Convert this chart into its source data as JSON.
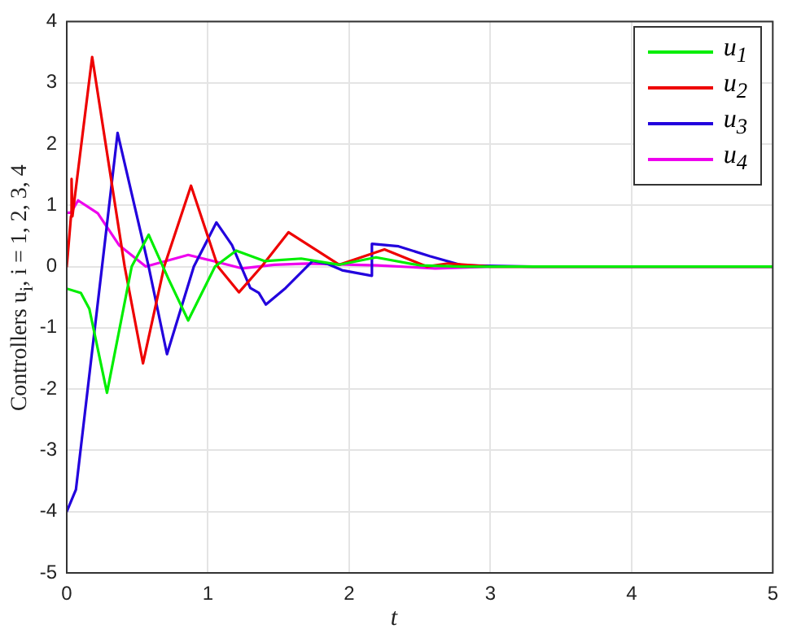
{
  "chart_data": {
    "type": "line",
    "xlabel": "t",
    "ylabel": "Controllers u$_{i}$, i = 1, 2, 3, 4",
    "xlim": [
      0,
      5
    ],
    "ylim": [
      -5,
      4
    ],
    "xticks": [
      0,
      1,
      2,
      3,
      4,
      5
    ],
    "yticks": [
      -5,
      -4,
      -3,
      -2,
      -1,
      0,
      1,
      2,
      3,
      4
    ],
    "grid": true,
    "legend": "top right",
    "marker": "none",
    "line_style": "solid",
    "series": [
      {
        "name": "u$_{1}$",
        "color": "#00ee00",
        "x": [
          0,
          0.1,
          0.16,
          0.285,
          0.46,
          0.58,
          0.72,
          0.86,
          1.05,
          1.2,
          1.4,
          1.66,
          1.93,
          2.19,
          2.5,
          2.8,
          3.2,
          5
        ],
        "values": [
          -0.36,
          -0.43,
          -0.69,
          -2.06,
          0,
          0.52,
          -0.2,
          -0.88,
          0,
          0.26,
          0.09,
          0.13,
          0.03,
          0.15,
          0.02,
          0,
          0,
          0
        ]
      },
      {
        "name": "u$_{2}$",
        "color": "#ee0000",
        "x": [
          0,
          0.03,
          0.034,
          0.04,
          0.18,
          0.41,
          0.54,
          0.69,
          0.88,
          1.07,
          1.22,
          1.38,
          1.57,
          1.93,
          2.25,
          2.55,
          2.7,
          3,
          5
        ],
        "values": [
          0,
          0.82,
          1.43,
          0.82,
          3.42,
          0,
          -1.58,
          0,
          1.32,
          0,
          -0.42,
          0,
          0.56,
          0.03,
          0.28,
          0,
          0.05,
          0,
          0
        ]
      },
      {
        "name": "u$_{3}$",
        "color": "#2200dd",
        "x": [
          0,
          0.065,
          0.25,
          0.36,
          0.58,
          0.71,
          0.9,
          1.06,
          1.17,
          1.3,
          1.36,
          1.41,
          1.55,
          1.74,
          1.85,
          1.95,
          2.16,
          2.161,
          2.35,
          2.57,
          2.8,
          3.3,
          5
        ],
        "values": [
          -4,
          -3.64,
          0,
          2.18,
          0,
          -1.43,
          0,
          0.72,
          0.35,
          -0.35,
          -0.43,
          -0.62,
          -0.35,
          0.09,
          0.04,
          -0.06,
          -0.15,
          0.37,
          0.33,
          0.17,
          0.02,
          0,
          0
        ]
      },
      {
        "name": "u$_{4}$",
        "color": "#ee00ee",
        "x": [
          0,
          0.03,
          0.08,
          0.22,
          0.37,
          0.56,
          0.75,
          0.86,
          1.02,
          1.24,
          1.47,
          1.7,
          2.2,
          2.61,
          3,
          5
        ],
        "values": [
          0.88,
          0.88,
          1.08,
          0.87,
          0.35,
          0,
          0.12,
          0.19,
          0.1,
          -0.03,
          0.03,
          0.05,
          0.02,
          -0.03,
          0,
          0
        ]
      }
    ]
  }
}
